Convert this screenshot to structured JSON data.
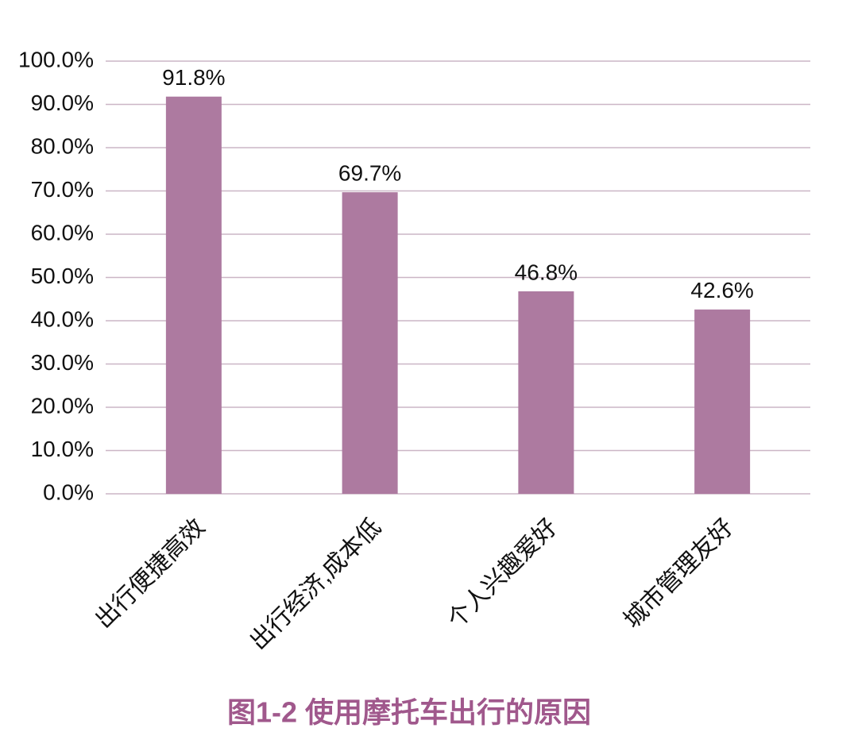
{
  "chart_data": {
    "type": "bar",
    "title": "图1-2 使用摩托车出行的原因",
    "categories": [
      "出行便捷高效",
      "出行经济,成本低",
      "个人兴趣爱好",
      "城市管理友好"
    ],
    "values": [
      91.8,
      69.7,
      46.8,
      42.6
    ],
    "value_labels": [
      "91.8%",
      "69.7%",
      "46.8%",
      "42.6%"
    ],
    "color": "#ad7aa0",
    "ylim": [
      0,
      100
    ],
    "yticks": [
      {
        "value": 0,
        "label": "0.0%"
      },
      {
        "value": 10,
        "label": "10.0%"
      },
      {
        "value": 20,
        "label": "20.0%"
      },
      {
        "value": 30,
        "label": "30.0%"
      },
      {
        "value": 40,
        "label": "40.0%"
      },
      {
        "value": 50,
        "label": "50.0%"
      },
      {
        "value": 60,
        "label": "60.0%"
      },
      {
        "value": 70,
        "label": "70.0%"
      },
      {
        "value": 80,
        "label": "80.0%"
      },
      {
        "value": 90,
        "label": "90.0%"
      },
      {
        "value": 100,
        "label": "100.0%"
      }
    ],
    "grid": true
  }
}
